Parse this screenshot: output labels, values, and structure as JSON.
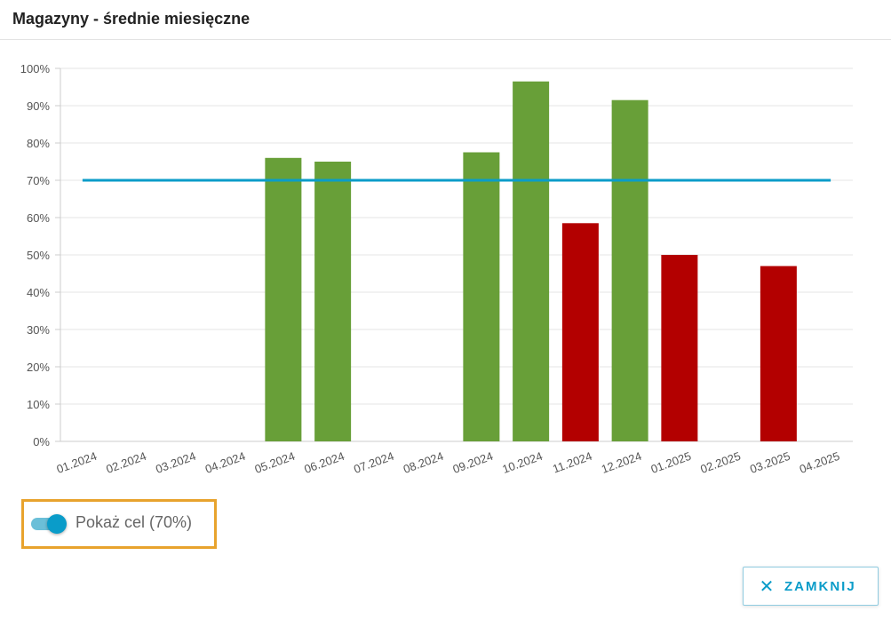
{
  "dialog": {
    "title": "Magazyny - średnie miesięczne",
    "close_label": "ZAMKNIJ",
    "close_icon": "close-icon"
  },
  "toggle": {
    "label": "Pokaż cel (70%)",
    "on": true,
    "track_color": "#6bbfd8",
    "knob_color": "#0a9cc9"
  },
  "chart_data": {
    "type": "bar",
    "categories": [
      "01.2024",
      "02.2024",
      "03.2024",
      "04.2024",
      "05.2024",
      "06.2024",
      "07.2024",
      "08.2024",
      "09.2024",
      "10.2024",
      "11.2024",
      "12.2024",
      "01.2025",
      "02.2025",
      "03.2025",
      "04.2025"
    ],
    "values": [
      null,
      null,
      null,
      null,
      76,
      75,
      null,
      null,
      77.5,
      96.5,
      58.5,
      91.5,
      50,
      null,
      47,
      null
    ],
    "target": 70,
    "ylim": [
      0,
      100
    ],
    "yticks": [
      "0%",
      "10%",
      "20%",
      "30%",
      "40%",
      "50%",
      "60%",
      "70%",
      "80%",
      "90%",
      "100%"
    ],
    "colors": {
      "above_target": "#689f38",
      "below_target": "#b30000",
      "target_line": "#0a9cc9"
    },
    "grid": true,
    "legend": "none"
  }
}
